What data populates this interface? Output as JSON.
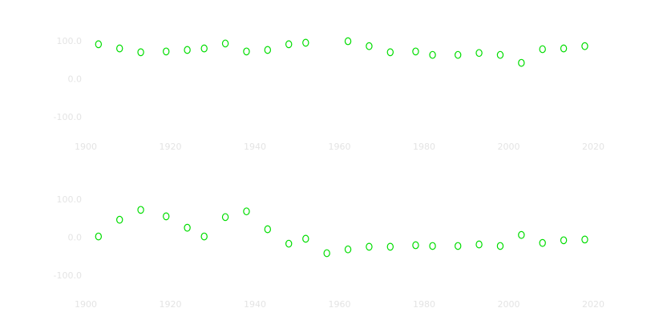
{
  "chart_data": [
    {
      "type": "scatter",
      "color": "#00dd00",
      "x": [
        1903,
        1908,
        1913,
        1919,
        1924,
        1928,
        1933,
        1938,
        1943,
        1948,
        1952,
        1957,
        1962,
        1967,
        1972,
        1978,
        1982,
        1988,
        1993,
        1998,
        2003,
        2008,
        2013,
        2018
      ],
      "values": [
        93,
        82,
        72,
        74,
        78,
        82,
        95,
        74,
        78,
        93,
        97,
        null,
        101,
        88,
        72,
        74,
        65,
        65,
        70,
        65,
        44,
        80,
        82,
        88
      ],
      "xlim": [
        1900,
        2020
      ],
      "xticks": [
        1900,
        1920,
        1940,
        1960,
        1980,
        2000,
        2020
      ],
      "ylim": [
        -100,
        100
      ],
      "yticks": [
        {
          "value": -100,
          "label": "-100.0"
        },
        {
          "value": 0,
          "label": "0.0"
        },
        {
          "value": 100,
          "label": "100.0"
        }
      ]
    },
    {
      "type": "scatter",
      "color": "#00dd00",
      "x": [
        1903,
        1908,
        1913,
        1919,
        1924,
        1928,
        1933,
        1938,
        1943,
        1948,
        1952,
        1957,
        1962,
        1967,
        1972,
        1978,
        1982,
        1988,
        1993,
        1998,
        2003,
        2008,
        2013,
        2018
      ],
      "values": [
        4,
        48,
        74,
        57,
        27,
        4,
        55,
        70,
        23,
        -15,
        -2,
        -40,
        -30,
        -23,
        -23,
        -19,
        -21,
        -21,
        -17,
        -21,
        8,
        -13,
        -6,
        -4
      ],
      "xlim": [
        1900,
        2020
      ],
      "xticks": [
        1900,
        1920,
        1940,
        1960,
        1980,
        2000,
        2020
      ],
      "ylim": [
        -100,
        100
      ],
      "yticks": [
        {
          "value": -100,
          "label": "-100.0"
        },
        {
          "value": 0,
          "label": "0.0"
        },
        {
          "value": 100,
          "label": "100.0"
        }
      ]
    }
  ]
}
